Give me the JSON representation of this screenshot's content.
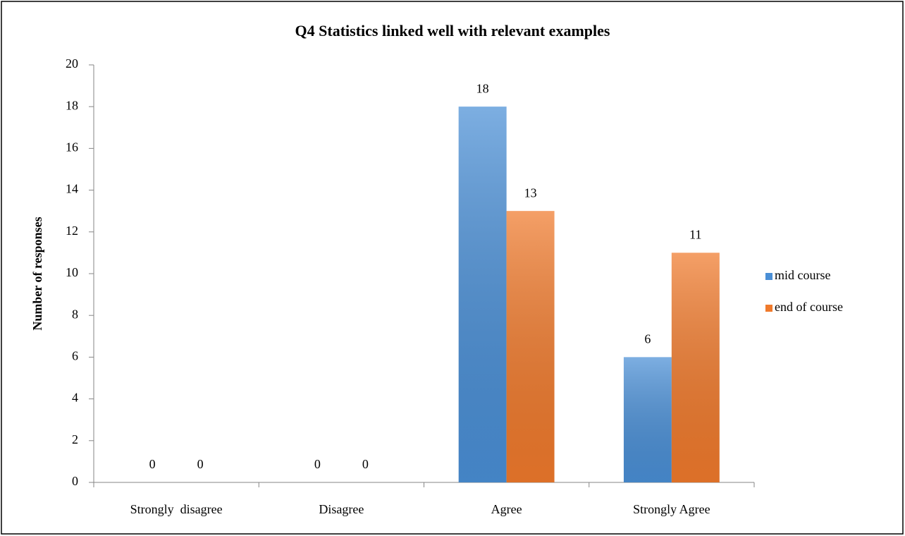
{
  "chart_data": {
    "type": "bar",
    "title": "Q4 Statistics linked well with relevant examples",
    "y_label": "Number of responses",
    "categories": [
      "Strongly  disagree",
      "Disagree",
      "Agree",
      "Strongly Agree"
    ],
    "series": [
      {
        "name": "mid course",
        "color": "#4a8fd6",
        "values": [
          0,
          0,
          18,
          6
        ]
      },
      {
        "name": "end of course",
        "color": "#f07a2c",
        "values": [
          0,
          0,
          13,
          11
        ]
      }
    ],
    "ylim": [
      0,
      20
    ],
    "yticks": [
      0,
      2,
      4,
      6,
      8,
      10,
      12,
      14,
      16,
      18,
      20
    ],
    "grid": false,
    "legend": "right",
    "data_labels": true
  }
}
